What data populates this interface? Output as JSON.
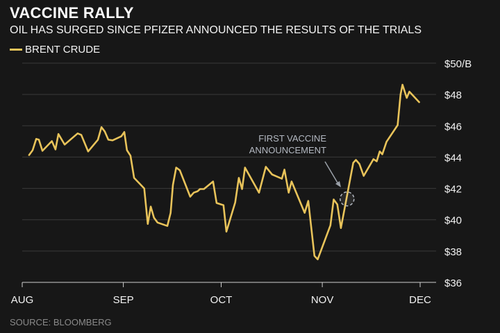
{
  "chart_data": {
    "type": "line",
    "title": "VACCINE RALLY",
    "subtitle": "OIL HAS SURGED SINCE PFIZER ANNOUNCED THE RESULTS OF THE TRIALS",
    "xlabel": "",
    "ylabel": "",
    "x_unit": "days since Aug 1",
    "xlim": [
      0,
      122
    ],
    "ylim": [
      36,
      50
    ],
    "grid": true,
    "legend_placement": "top-left",
    "x_ticks": [
      {
        "day": 0,
        "label": "AUG"
      },
      {
        "day": 31,
        "label": "SEP"
      },
      {
        "day": 61,
        "label": "OCT"
      },
      {
        "day": 92,
        "label": "NOV"
      },
      {
        "day": 122,
        "label": "DEC"
      }
    ],
    "y_ticks": [
      {
        "value": 36,
        "label": "$36"
      },
      {
        "value": 38,
        "label": "$38"
      },
      {
        "value": 40,
        "label": "$40"
      },
      {
        "value": 42,
        "label": "$42"
      },
      {
        "value": 44,
        "label": "$44"
      },
      {
        "value": 46,
        "label": "$46"
      },
      {
        "value": 48,
        "label": "$48"
      },
      {
        "value": 50,
        "label": "$50/B"
      }
    ],
    "series": [
      {
        "name": "BRENT CRUDE",
        "color": "#e8c35a",
        "x": [
          2.1,
          3.2,
          4.3,
          5.1,
          6.2,
          9.1,
          10.2,
          11.1,
          13.0,
          17.0,
          18.1,
          20.2,
          23.2,
          24.3,
          25.3,
          26.4,
          27.7,
          30.4,
          31.3,
          32.1,
          33.2,
          34.3,
          37.4,
          38.5,
          39.4,
          40.4,
          41.5,
          44.5,
          45.5,
          46.2,
          47.2,
          48.3,
          51.5,
          52.6,
          53.8,
          54.5,
          55.7,
          58.5,
          59.6,
          61.7,
          62.6,
          65.3,
          66.4,
          67.4,
          68.3,
          72.6,
          74.7,
          76.6,
          79.6,
          80.4,
          81.7,
          82.6,
          86.6,
          87.7,
          89.6,
          90.6,
          94.5,
          95.5,
          96.6,
          97.7,
          101.5,
          102.3,
          103.4,
          104.7,
          107.7,
          108.7,
          109.6,
          110.4,
          111.7,
          115.1,
          116.0,
          116.6,
          117.9,
          118.7,
          121.7
        ],
        "values": [
          44.13,
          44.44,
          45.16,
          45.11,
          44.4,
          45.02,
          44.49,
          45.47,
          44.8,
          45.51,
          45.42,
          44.36,
          45.11,
          45.91,
          45.64,
          45.11,
          45.07,
          45.33,
          45.6,
          44.44,
          44.09,
          42.67,
          42.0,
          39.73,
          40.84,
          40.13,
          39.82,
          39.6,
          40.44,
          42.22,
          43.33,
          43.16,
          41.47,
          41.73,
          41.82,
          41.96,
          41.96,
          42.44,
          41.07,
          40.93,
          39.24,
          41.11,
          42.67,
          41.96,
          43.33,
          41.73,
          43.38,
          42.89,
          42.62,
          43.2,
          41.73,
          42.44,
          40.44,
          41.2,
          37.69,
          37.47,
          39.64,
          41.29,
          40.98,
          39.47,
          43.64,
          43.82,
          43.56,
          42.8,
          43.87,
          43.73,
          44.36,
          44.18,
          44.98,
          46.04,
          48.0,
          48.62,
          47.78,
          48.18,
          47.51
        ]
      }
    ],
    "annotations": [
      {
        "text_lines": [
          "FIRST VACCINE",
          "ANNOUNCEMENT"
        ],
        "day": 99.6,
        "value": 41.33
      }
    ],
    "source": "SOURCE: BLOOMBERG"
  }
}
